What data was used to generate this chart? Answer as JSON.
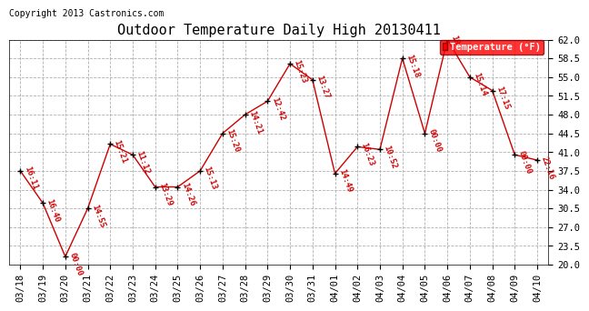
{
  "title": "Outdoor Temperature Daily High 20130411",
  "copyright": "Copyright 2013 Castronics.com",
  "legend_label": "Temperature (°F)",
  "dates": [
    "03/18",
    "03/19",
    "03/20",
    "03/21",
    "03/22",
    "03/23",
    "03/24",
    "03/25",
    "03/26",
    "03/27",
    "03/28",
    "03/29",
    "03/30",
    "03/31",
    "04/01",
    "04/02",
    "04/03",
    "04/04",
    "04/05",
    "04/06",
    "04/07",
    "04/08",
    "04/09",
    "04/10"
  ],
  "values": [
    37.5,
    31.5,
    21.5,
    30.5,
    42.5,
    40.5,
    34.5,
    34.5,
    37.5,
    44.5,
    48.0,
    50.5,
    57.5,
    54.5,
    37.0,
    42.0,
    41.5,
    58.5,
    44.5,
    62.0,
    55.0,
    52.5,
    40.5,
    39.5
  ],
  "labels": [
    "16:11",
    "16:40",
    "00:00",
    "14:55",
    "15:21",
    "11:12",
    "13:29",
    "14:26",
    "15:13",
    "15:20",
    "14:21",
    "12:42",
    "15:23",
    "13:27",
    "14:49",
    "16:23",
    "10:52",
    "15:18",
    "00:00",
    "18",
    "15:14",
    "17:15",
    "00:00",
    "22:16"
  ],
  "line_color": "#cc0000",
  "marker_color": "#000000",
  "label_color": "#cc0000",
  "bg_color": "#ffffff",
  "grid_color": "#b0b0b0",
  "ylim": [
    20.0,
    62.0
  ],
  "yticks": [
    20.0,
    23.5,
    27.0,
    30.5,
    34.0,
    37.5,
    41.0,
    44.5,
    48.0,
    51.5,
    55.0,
    58.5,
    62.0
  ],
  "title_fontsize": 11,
  "label_fontsize": 6.5,
  "copyright_fontsize": 7,
  "tick_fontsize": 7.5
}
